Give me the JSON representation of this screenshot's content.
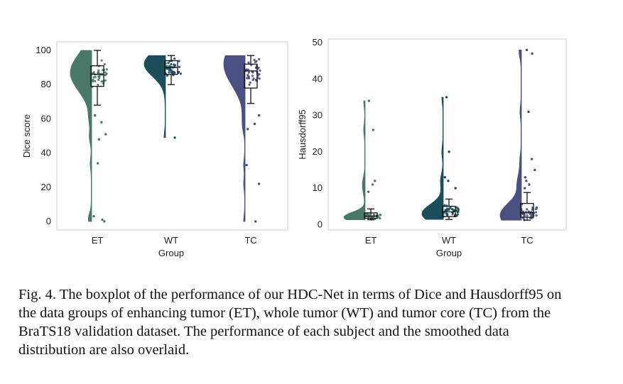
{
  "chart_data": [
    {
      "type": "raincloud",
      "xlabel": "Group",
      "ylabel": "Dice score",
      "categories": [
        "ET",
        "WT",
        "TC"
      ],
      "ylim": [
        -5,
        105
      ],
      "yticks": [
        0,
        20,
        40,
        60,
        80,
        100
      ],
      "grid": false,
      "colors": [
        "#4a7866",
        "#1c4d5a",
        "#4a5080"
      ],
      "box": [
        {
          "whisker_low": 68,
          "q1": 79,
          "median": 86,
          "q3": 91,
          "whisker_high": 100
        },
        {
          "whisker_low": 80,
          "q1": 86,
          "median": 90,
          "q3": 94,
          "whisker_high": 97
        },
        {
          "whisker_low": 69,
          "q1": 78,
          "median": 88,
          "q3": 92,
          "whisker_high": 97
        }
      ],
      "outliers": [
        [
          0,
          1,
          3,
          34,
          48,
          51,
          58,
          62
        ],
        [
          49
        ],
        [
          0,
          22,
          33,
          54,
          57,
          62
        ]
      ],
      "density_modes": [
        87,
        92,
        92
      ]
    },
    {
      "type": "raincloud",
      "xlabel": "Group",
      "ylabel": "Hausdorff95",
      "categories": [
        "ET",
        "WT",
        "TC"
      ],
      "ylim": [
        -1.5,
        51
      ],
      "yticks": [
        0,
        10,
        20,
        30,
        40,
        50
      ],
      "grid": false,
      "colors": [
        "#4a7866",
        "#1c4d5a",
        "#4a5080"
      ],
      "box": [
        {
          "whisker_low": 1.3,
          "q1": 1.7,
          "median": 2.3,
          "q3": 3.2,
          "whisker_high": 4.3
        },
        {
          "whisker_low": 1.4,
          "q1": 2.2,
          "median": 3.5,
          "q3": 5.0,
          "whisker_high": 7.0
        },
        {
          "whisker_low": 1.2,
          "q1": 2.0,
          "median": 3.2,
          "q3": 5.8,
          "whisker_high": 8.8
        }
      ],
      "outliers": [
        [
          9,
          11,
          12,
          26,
          34
        ],
        [
          10,
          12,
          13,
          20,
          35
        ],
        [
          10,
          11,
          12,
          13,
          15,
          18,
          31,
          47,
          48
        ]
      ],
      "density_modes": [
        2,
        3,
        2.5
      ]
    }
  ],
  "caption": "Fig. 4.  The boxplot of the performance of our HDC-Net in terms of Dice and Hausdorff95 on the data groups of enhancing tumor (ET), whole tumor (WT) and tumor core (TC) from the BraTS18 validation dataset. The performance of each subject and the smoothed data distribution are also overlaid."
}
